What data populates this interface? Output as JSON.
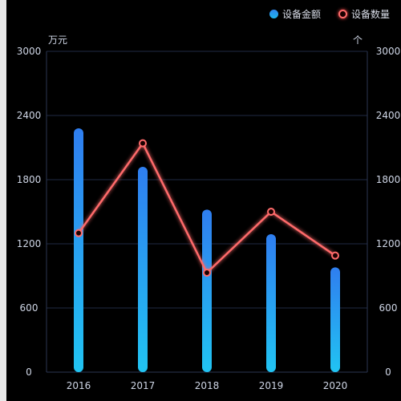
{
  "chart_data": {
    "type": "bar",
    "categories": [
      "2016",
      "2017",
      "2018",
      "2019",
      "2020"
    ],
    "series": [
      {
        "name": "设备金额",
        "type": "bar",
        "axis": "left",
        "values": [
          2280,
          1920,
          1520,
          1290,
          980
        ]
      },
      {
        "name": "设备数量",
        "type": "line",
        "axis": "right",
        "values": [
          1300,
          2140,
          930,
          1500,
          1090
        ]
      }
    ],
    "left_axis": {
      "unit": "万元",
      "ylim": [
        0,
        3000
      ],
      "ticks": [
        "0",
        "600",
        "1200",
        "1800",
        "2400",
        "3000"
      ]
    },
    "right_axis": {
      "unit": "个",
      "ylim": [
        0,
        3000
      ],
      "ticks": [
        "0",
        "600",
        "1200",
        "1800",
        "2400",
        "3000"
      ]
    },
    "grid": true,
    "legend_position": "top-right",
    "colors": {
      "bar_top": "#2f7ef0",
      "bar_bottom": "#21c4f2",
      "line": "#ff6b6b",
      "grid": "#1f2a44",
      "axis_text": "#cfd6e6"
    }
  }
}
